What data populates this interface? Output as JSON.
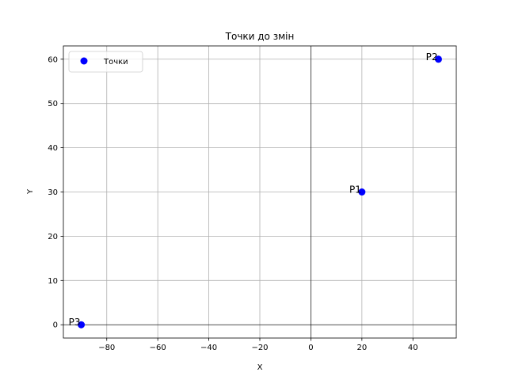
{
  "chart_data": {
    "type": "scatter",
    "title": "Точки до змін",
    "xlabel": "X",
    "ylabel": "Y",
    "xlim": [
      -97,
      57
    ],
    "ylim": [
      -3,
      63
    ],
    "xticks": [
      -80,
      -60,
      -40,
      -20,
      0,
      20,
      40
    ],
    "yticks": [
      0,
      10,
      20,
      30,
      40,
      50,
      60
    ],
    "xtick_labels": [
      "−80",
      "−60",
      "−40",
      "−20",
      "0",
      "20",
      "40"
    ],
    "ytick_labels": [
      "0",
      "10",
      "20",
      "30",
      "40",
      "50",
      "60"
    ],
    "grid": true,
    "zero_lines": true,
    "legend": {
      "placement": "top-left",
      "entries": [
        "Точки"
      ]
    },
    "series": [
      {
        "name": "Точки",
        "color": "#0000ff",
        "points": [
          {
            "label": "P1",
            "x": 20,
            "y": 30
          },
          {
            "label": "P2",
            "x": 50,
            "y": 60
          },
          {
            "label": "P3",
            "x": -90,
            "y": 0
          }
        ]
      }
    ]
  }
}
